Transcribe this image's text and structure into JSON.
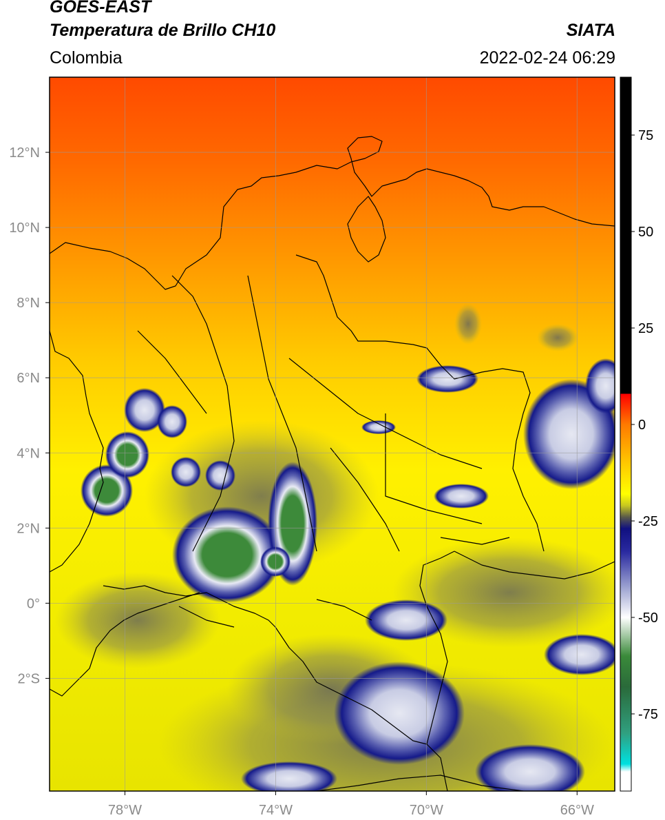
{
  "header": {
    "satellite": "GOES-EAST",
    "product": "Temperatura de Brillo CH10",
    "organization": "SIATA",
    "region": "Colombia",
    "datetime": "2022-02-24 06:29"
  },
  "map": {
    "lon_range": [
      -80,
      -65
    ],
    "lat_range": [
      -5,
      14
    ],
    "lon_ticks": [
      {
        "value": -78,
        "label": "78°W"
      },
      {
        "value": -74,
        "label": "74°W"
      },
      {
        "value": -70,
        "label": "70°W"
      },
      {
        "value": -66,
        "label": "66°W"
      }
    ],
    "lat_ticks": [
      {
        "value": 12,
        "label": "12°N"
      },
      {
        "value": 10,
        "label": "10°N"
      },
      {
        "value": 8,
        "label": "8°N"
      },
      {
        "value": 6,
        "label": "6°N"
      },
      {
        "value": 4,
        "label": "4°N"
      },
      {
        "value": 2,
        "label": "2°N"
      },
      {
        "value": 0,
        "label": "0°"
      },
      {
        "value": -2,
        "label": "2°S"
      }
    ],
    "grid": true,
    "colors": {
      "warm_top": "#ff4a00",
      "orange": "#ff8a00",
      "yellow": "#f4f000",
      "olive": "#b6b236",
      "grey": "#7a7a6a",
      "navy": "#141a8a",
      "cloud_white": "#e6e8f2",
      "cold_green": "#3d8a3a"
    }
  },
  "colorbar": {
    "range": [
      -95,
      90
    ],
    "ticks": [
      {
        "value": 75,
        "label": "75"
      },
      {
        "value": 50,
        "label": "50"
      },
      {
        "value": 25,
        "label": "25"
      },
      {
        "value": 0,
        "label": "0"
      },
      {
        "value": -25,
        "label": "-25"
      },
      {
        "value": -50,
        "label": "-50"
      },
      {
        "value": -75,
        "label": "-75"
      }
    ],
    "stops": [
      {
        "value": 90,
        "color": "#000000"
      },
      {
        "value": 8,
        "color": "#000000"
      },
      {
        "value": 7.9,
        "color": "#ff0000"
      },
      {
        "value": 0,
        "color": "#ff7a00"
      },
      {
        "value": -10,
        "color": "#ffc800"
      },
      {
        "value": -18,
        "color": "#ffff00"
      },
      {
        "value": -21,
        "color": "#c8c820"
      },
      {
        "value": -24,
        "color": "#5a5a4a"
      },
      {
        "value": -27,
        "color": "#101080"
      },
      {
        "value": -33,
        "color": "#2a2aa0"
      },
      {
        "value": -42,
        "color": "#9aa0d0"
      },
      {
        "value": -50,
        "color": "#ffffff"
      },
      {
        "value": -60,
        "color": "#3a8a3a"
      },
      {
        "value": -68,
        "color": "#2a6a3a"
      },
      {
        "value": -80,
        "color": "#30a080"
      },
      {
        "value": -88,
        "color": "#00e0e0"
      },
      {
        "value": -90,
        "color": "#ffffff"
      },
      {
        "value": -95,
        "color": "#ffffff"
      }
    ]
  }
}
